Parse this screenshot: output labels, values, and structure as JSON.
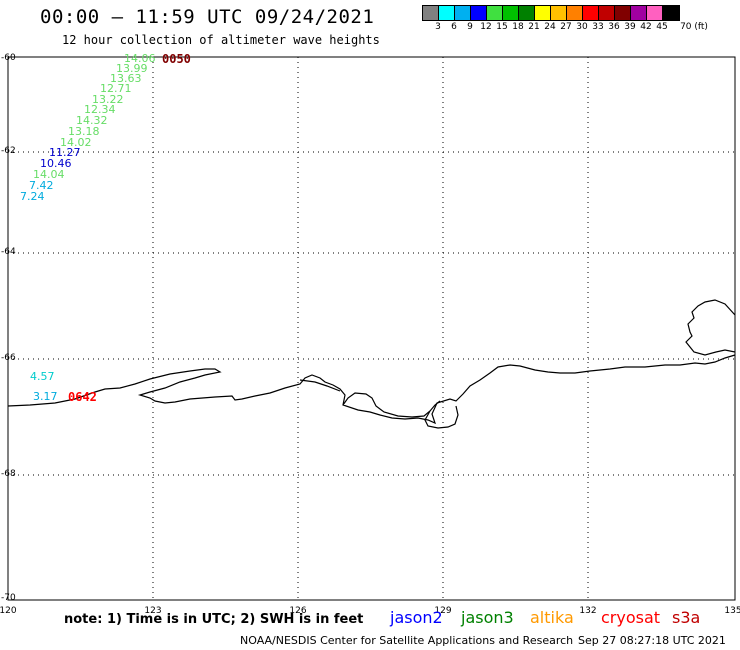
{
  "header": {
    "title": "00:00 – 11:59 UTC 09/24/2021",
    "subtitle": "12 hour collection of altimeter wave heights"
  },
  "color_scale": {
    "swatches": [
      "#808080",
      "#00ffff",
      "#00b0f0",
      "#0000ff",
      "#40e040",
      "#00c000",
      "#008000",
      "#ffff00",
      "#ffc000",
      "#ff8000",
      "#ff0000",
      "#c00000",
      "#800000",
      "#a000a0",
      "#ff60c0",
      "#000000"
    ],
    "labels": [
      "3",
      "6",
      "9",
      "12",
      "15",
      "18",
      "21",
      "24",
      "27",
      "30",
      "33",
      "36",
      "39",
      "42",
      "45",
      "70 (ft)"
    ]
  },
  "axes": {
    "x_ticks": [
      "120",
      "123",
      "126",
      "129",
      "132",
      "135"
    ],
    "y_ticks": [
      "-60",
      "-62",
      "-64",
      "-66",
      "-68",
      "-70"
    ]
  },
  "observations": [
    {
      "value": "14.06",
      "color": "#66dd66"
    },
    {
      "value": "13.99",
      "color": "#66dd66"
    },
    {
      "value": "13.63",
      "color": "#66dd66"
    },
    {
      "value": "12.71",
      "color": "#66dd66"
    },
    {
      "value": "13.22",
      "color": "#66dd66"
    },
    {
      "value": "12.34",
      "color": "#66dd66"
    },
    {
      "value": "14.32",
      "color": "#66dd66"
    },
    {
      "value": "13.18",
      "color": "#66dd66"
    },
    {
      "value": "14.02",
      "color": "#66dd66"
    },
    {
      "value": "11.27",
      "color": "#0000cc"
    },
    {
      "value": "10.46",
      "color": "#0000cc"
    },
    {
      "value": "14.04",
      "color": "#66dd66"
    },
    {
      "value": "7.42",
      "color": "#00aadd"
    },
    {
      "value": "7.24",
      "color": "#00aadd"
    },
    {
      "value": "4.57",
      "color": "#00cccc"
    },
    {
      "value": "3.17",
      "color": "#00aadd"
    }
  ],
  "time_labels": [
    {
      "text": "0050",
      "color": "#800000"
    },
    {
      "text": "0642",
      "color": "#ff0000"
    }
  ],
  "notes": {
    "text": "note: 1) Time is in UTC; 2) SWH is in feet"
  },
  "satellites": [
    {
      "name": "jason2",
      "color": "#0000ff"
    },
    {
      "name": "jason3",
      "color": "#008000"
    },
    {
      "name": "altika",
      "color": "#ff9900"
    },
    {
      "name": "cryosat",
      "color": "#ff0000"
    },
    {
      "name": "s3a",
      "color": "#c00000"
    }
  ],
  "footer": {
    "credit": "NOAA/NESDIS Center for Satellite Applications and Research",
    "timestamp": "Sep 27 08:27:18 UTC 2021"
  }
}
